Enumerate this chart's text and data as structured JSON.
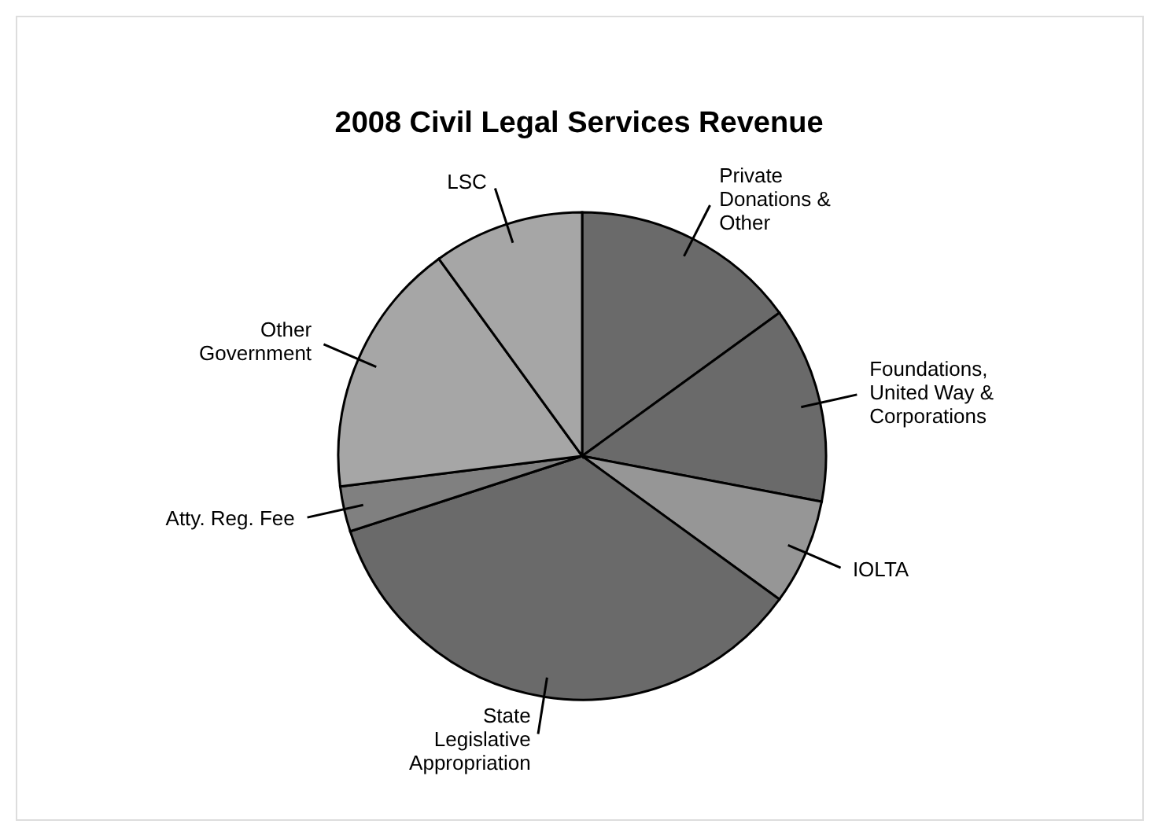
{
  "chart_data": {
    "type": "pie",
    "title": "2008 Civil Legal Services Revenue",
    "categories": [
      "Private\nDonations &\nOther",
      "Foundations,\nUnited Way &\nCorporations",
      "IOLTA",
      "State\nLegislative\nAppropriation",
      "Atty. Reg. Fee",
      "Other\nGovernment",
      "LSC"
    ],
    "values": [
      15,
      13,
      7,
      35,
      3,
      17,
      10
    ],
    "colors": [
      "#6a6a6a",
      "#6a6a6a",
      "#969696",
      "#6a6a6a",
      "#808080",
      "#a6a6a6",
      "#a6a6a6"
    ]
  }
}
